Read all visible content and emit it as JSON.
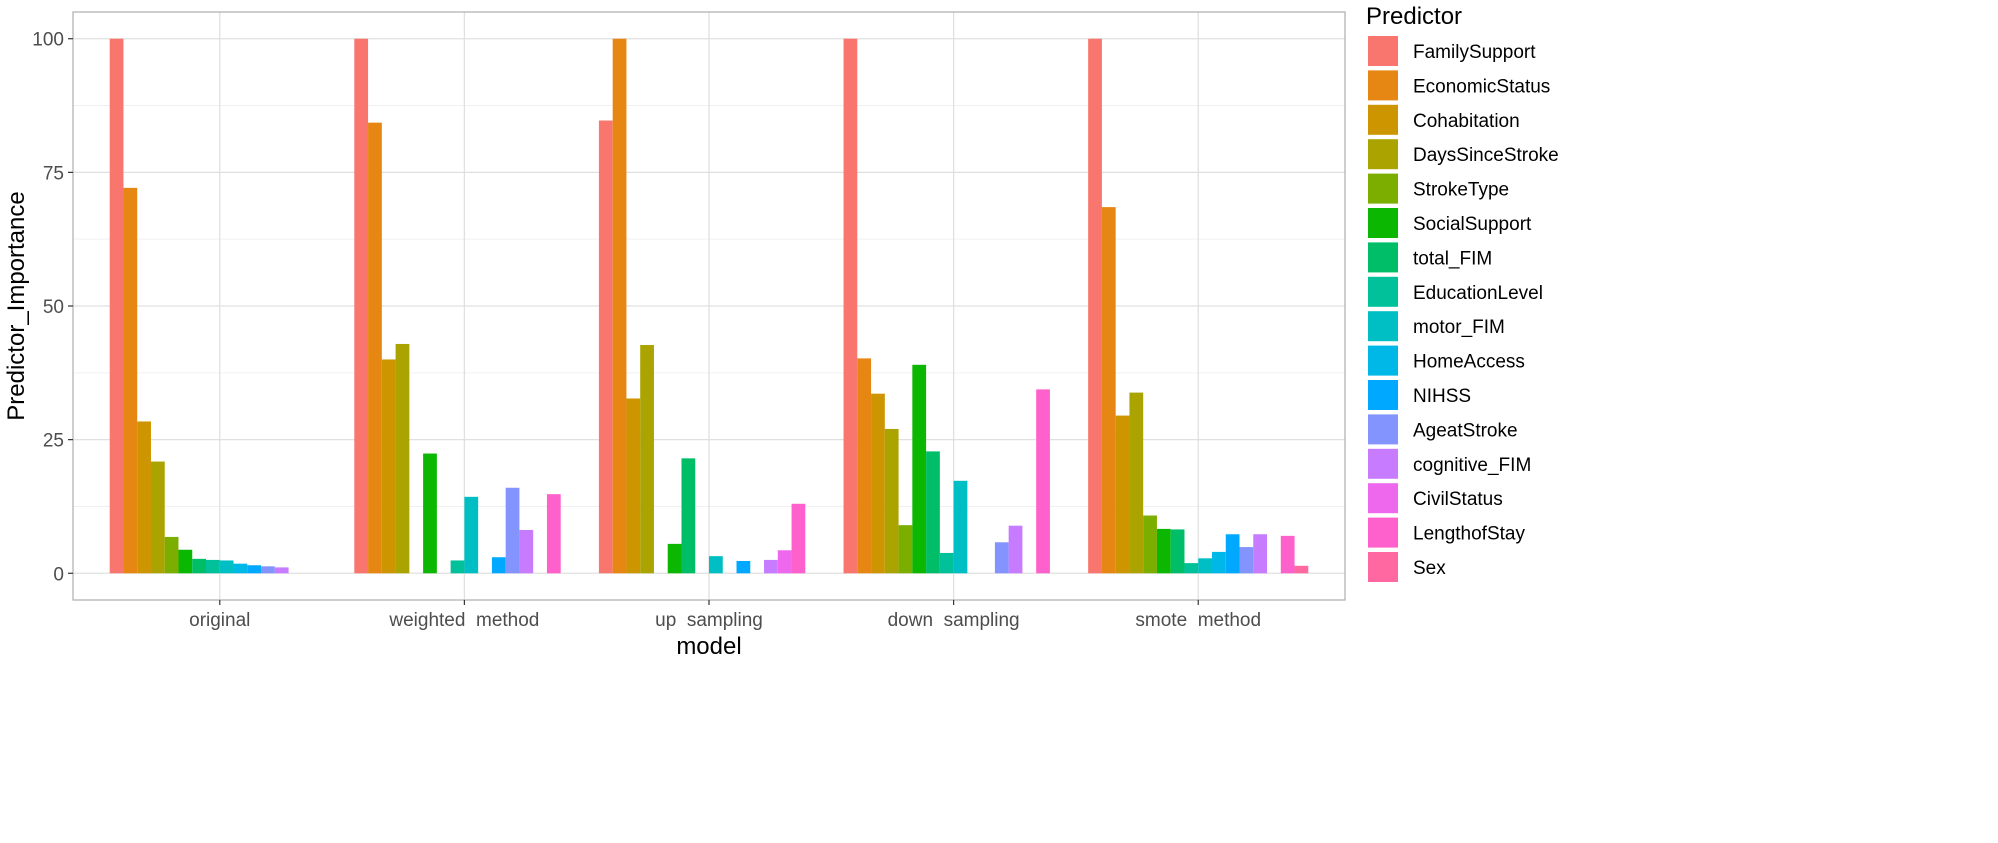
{
  "chart_data": {
    "type": "bar",
    "xlabel": "model",
    "ylabel": "Predictor_Importance",
    "ylim": [
      0,
      100
    ],
    "yticks": [
      0,
      25,
      50,
      75,
      100
    ],
    "grid": true,
    "legend_title": "Predictor",
    "legend_position": "right",
    "categories": [
      "original",
      "weighted  method",
      "up  sampling",
      "down  sampling",
      "smote  method"
    ],
    "series": [
      {
        "name": "FamilySupport",
        "color": "#F8766D",
        "values": [
          100,
          100,
          84.7,
          100,
          100
        ]
      },
      {
        "name": "EconomicStatus",
        "color": "#E68613",
        "values": [
          72.1,
          84.3,
          100,
          40.2,
          68.5
        ]
      },
      {
        "name": "Cohabitation",
        "color": "#CD9600",
        "values": [
          28.4,
          40.0,
          32.7,
          33.6,
          29.5
        ]
      },
      {
        "name": "DaysSinceStroke",
        "color": "#ABA300",
        "values": [
          20.9,
          42.9,
          42.7,
          27.0,
          33.8
        ]
      },
      {
        "name": "StrokeType",
        "color": "#7CAE00",
        "values": [
          6.8,
          0,
          0,
          9.0,
          10.8
        ]
      },
      {
        "name": "SocialSupport",
        "color": "#0CB702",
        "values": [
          4.4,
          22.4,
          5.5,
          39.0,
          8.3
        ]
      },
      {
        "name": "total_FIM",
        "color": "#00BE67",
        "values": [
          2.7,
          0,
          21.5,
          22.8,
          8.2
        ]
      },
      {
        "name": "EducationLevel",
        "color": "#00C19A",
        "values": [
          2.5,
          2.4,
          0,
          3.8,
          1.9
        ]
      },
      {
        "name": "motor_FIM",
        "color": "#00BFC4",
        "values": [
          2.4,
          14.3,
          3.2,
          17.3,
          2.8
        ]
      },
      {
        "name": "HomeAccess",
        "color": "#00B8E7",
        "values": [
          1.8,
          0,
          0,
          0,
          4.0
        ]
      },
      {
        "name": "NIHSS",
        "color": "#00A9FF",
        "values": [
          1.5,
          3.0,
          2.3,
          0,
          7.3
        ]
      },
      {
        "name": "AgeatStroke",
        "color": "#8494FF",
        "values": [
          1.3,
          16.0,
          0,
          5.8,
          4.9
        ]
      },
      {
        "name": "cognitive_FIM",
        "color": "#C77CFF",
        "values": [
          1.1,
          8.1,
          2.5,
          8.9,
          7.3
        ]
      },
      {
        "name": "CivilStatus",
        "color": "#ED68ED",
        "values": [
          0,
          0,
          4.3,
          0,
          0
        ]
      },
      {
        "name": "LengthofStay",
        "color": "#FF61CC",
        "values": [
          0,
          14.8,
          13.0,
          34.4,
          7.0
        ]
      },
      {
        "name": "Sex",
        "color": "#FF68A1",
        "values": [
          0,
          0,
          0,
          0,
          1.4
        ]
      }
    ]
  }
}
